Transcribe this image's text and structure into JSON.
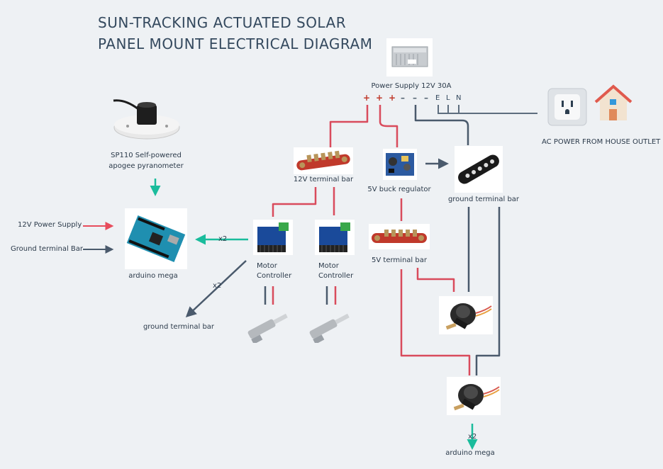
{
  "title": {
    "line1": "SUN-TRACKING ACTUATED SOLAR",
    "line2": "PANEL MOUNT ELECTRICAL DIAGRAM"
  },
  "labels": {
    "power_supply": "Power Supply 12V 30A",
    "ac_power": "AC POWER FROM HOUSE OUTLET",
    "pyranometer_line1": "SP110  Self-powered",
    "pyranometer_line2": "apogee pyranometer",
    "bar_12v": "12V terminal bar",
    "buck": "5V buck regulator",
    "ground_bar": "ground terminal bar",
    "bar_5v": "5V terminal bar",
    "in_12v": "12V Power Supply",
    "in_ground": "Ground terminal Bar",
    "arduino": "arduino mega",
    "motor_line1": "Motor",
    "motor_line2": "Controller",
    "ground_out": "ground terminal bar",
    "arduino_out": "arduino mega",
    "multiplier": "x2"
  },
  "terminals": {
    "plus": "+",
    "minus": "–",
    "e": "E",
    "l": "L",
    "n": "N"
  },
  "colors": {
    "background": "#eef1f4",
    "positive_wire": "#d94b5c",
    "ground_wire": "#4a5a6c",
    "signal_arrow": "#1abc9c",
    "input_arrow_red": "#e74c5c",
    "neutral_line": "#5d6d7e"
  },
  "icons": [
    "power-supply-icon",
    "outlet-icon",
    "house-icon",
    "pyranometer-icon",
    "terminal-bar-red-icon",
    "terminal-bar-black-icon",
    "buck-regulator-icon",
    "arduino-icon",
    "motor-controller-icon",
    "linear-actuator-icon",
    "servo-sensor-icon"
  ]
}
